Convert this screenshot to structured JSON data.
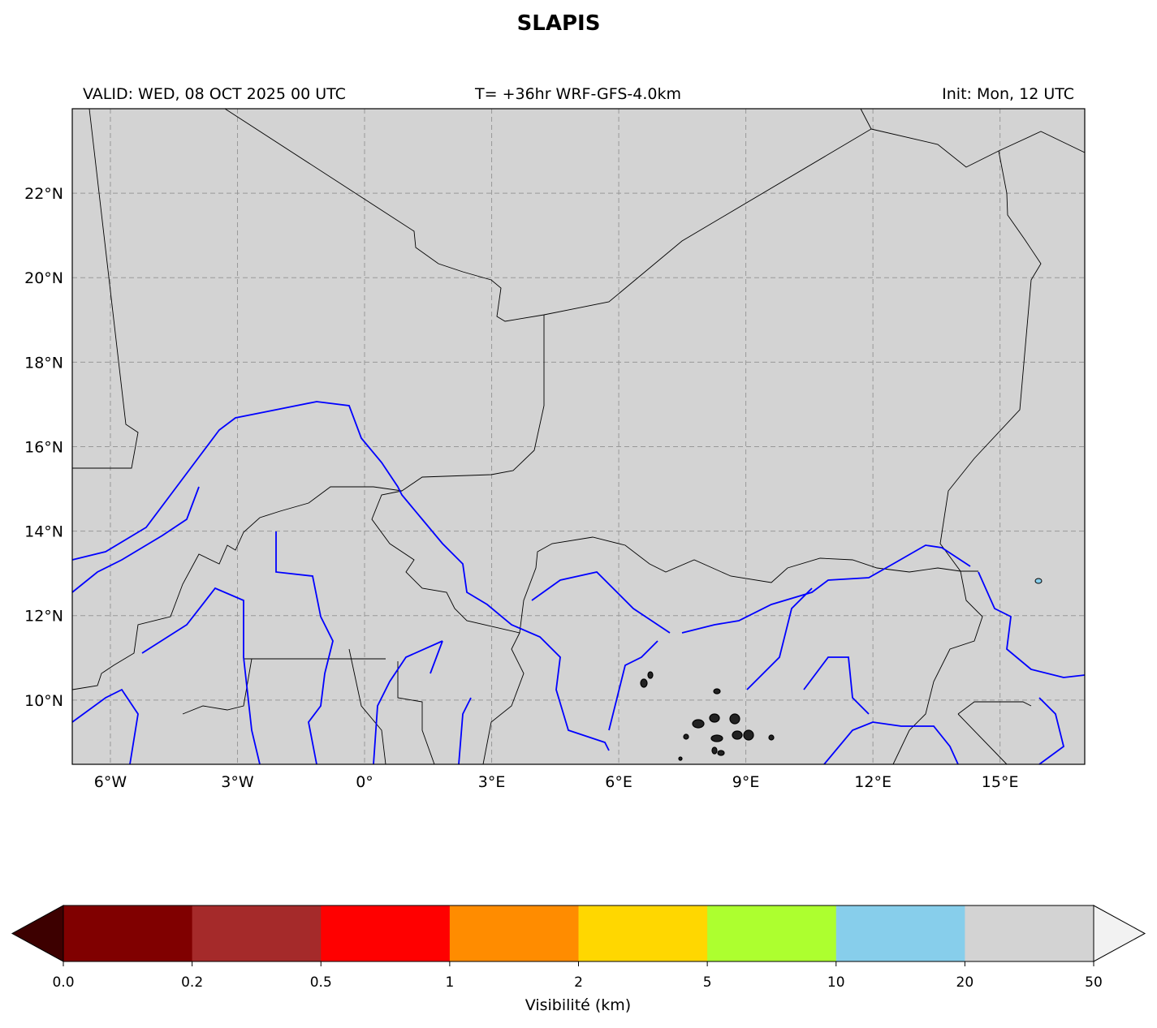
{
  "title": "SLAPIS",
  "header": {
    "valid": "VALID: WED, 08 OCT 2025 00 UTC",
    "run": "T= +36hr WRF-GFS-4.0km",
    "init": "Init: Mon, 12 UTC"
  },
  "map": {
    "xlim": [
      -6.9,
      17.0
    ],
    "ylim": [
      8.48,
      24.0
    ],
    "grid": true,
    "background": "#d3d3d3",
    "xticks": [
      {
        "value": -6,
        "label": "6°W"
      },
      {
        "value": -3,
        "label": "3°W"
      },
      {
        "value": 0,
        "label": "0°"
      },
      {
        "value": 3,
        "label": "3°E"
      },
      {
        "value": 6,
        "label": "6°E"
      },
      {
        "value": 9,
        "label": "9°E"
      },
      {
        "value": 12,
        "label": "12°E"
      },
      {
        "value": 15,
        "label": "15°E"
      }
    ],
    "yticks": [
      {
        "value": 10,
        "label": "10°N"
      },
      {
        "value": 12,
        "label": "12°N"
      },
      {
        "value": 14,
        "label": "14°N"
      },
      {
        "value": 16,
        "label": "16°N"
      },
      {
        "value": 18,
        "label": "18°N"
      },
      {
        "value": 20,
        "label": "20°N"
      },
      {
        "value": 22,
        "label": "22°N"
      }
    ]
  },
  "colorbar": {
    "label": "Visibilité (km)",
    "ticks": [
      {
        "value": 0,
        "label": "0.0"
      },
      0.2,
      0.5,
      1,
      2,
      5,
      10,
      20,
      50
    ],
    "colors": [
      "#800000",
      "#a52a2a",
      "#ff0000",
      "#ff8c00",
      "#ffd700",
      "#adff2f",
      "#87ceeb",
      "#d3d3d3"
    ],
    "under_color": "#3d0000",
    "over_color": "#f2f2f2"
  }
}
